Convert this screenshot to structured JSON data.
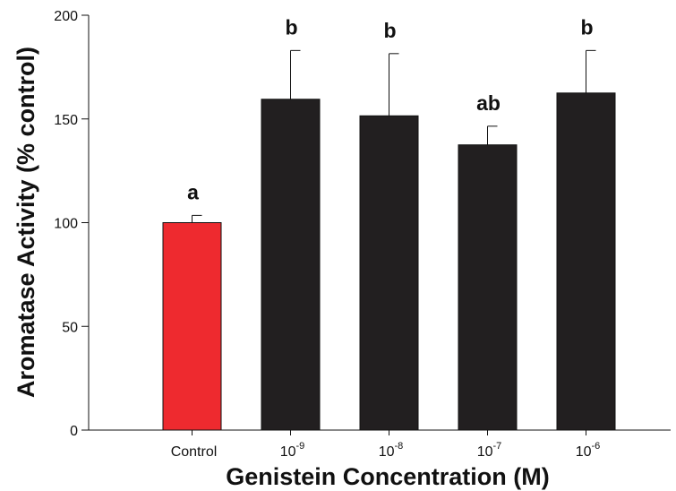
{
  "chart_data": {
    "type": "bar",
    "title": "",
    "xlabel": "Genistein Concentration (M)",
    "ylabel": "Aromatase Activity (% control)",
    "ylim": [
      0,
      200
    ],
    "yticks": [
      0,
      50,
      100,
      150,
      200
    ],
    "grid": false,
    "categories": [
      {
        "base": "Control",
        "sup": ""
      },
      {
        "base": "10",
        "sup": "-9"
      },
      {
        "base": "10",
        "sup": "-8"
      },
      {
        "base": "10",
        "sup": "-7"
      },
      {
        "base": "10",
        "sup": "-6"
      }
    ],
    "values": [
      100,
      159.5,
      151.5,
      137.5,
      162.5
    ],
    "error_upper": [
      3.5,
      23.5,
      30,
      9,
      20.5
    ],
    "significance_labels": [
      "a",
      "b",
      "b",
      "ab",
      "b"
    ],
    "bar_colors": [
      "#ee2a2f",
      "#221f20",
      "#221f20",
      "#221f20",
      "#221f20"
    ]
  }
}
